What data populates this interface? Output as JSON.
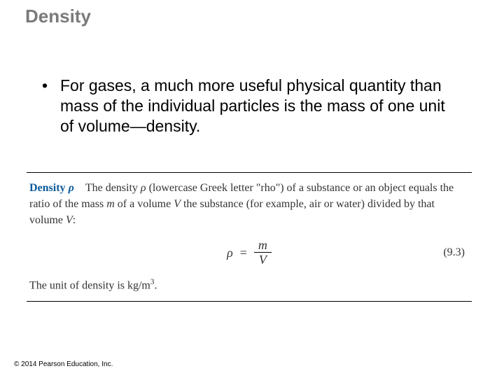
{
  "title": "Density",
  "bullet": {
    "marker": "•",
    "text": "For gases, a much more useful physical quantity than mass of the individual particles is the mass of one unit of volume—density."
  },
  "definition": {
    "label": "Density",
    "symbol": "ρ",
    "body_pre": "The density ",
    "body_mid1": " (lowercase Greek letter \"rho\") of a substance or an object equals the ratio of the mass ",
    "m": "m",
    "body_mid2": " of a volume ",
    "V": "V",
    "body_mid3": " the substance (for example, air or water) divided by that volume ",
    "body_end": ":",
    "eq_lhs": "ρ",
    "eq_eq": "=",
    "eq_num": "m",
    "eq_den": "V",
    "eq_ref": "(9.3)",
    "unit_line_pre": "The unit of density is kg/m",
    "unit_exp": "3",
    "unit_line_post": "."
  },
  "copyright": "© 2014 Pearson Education, Inc."
}
